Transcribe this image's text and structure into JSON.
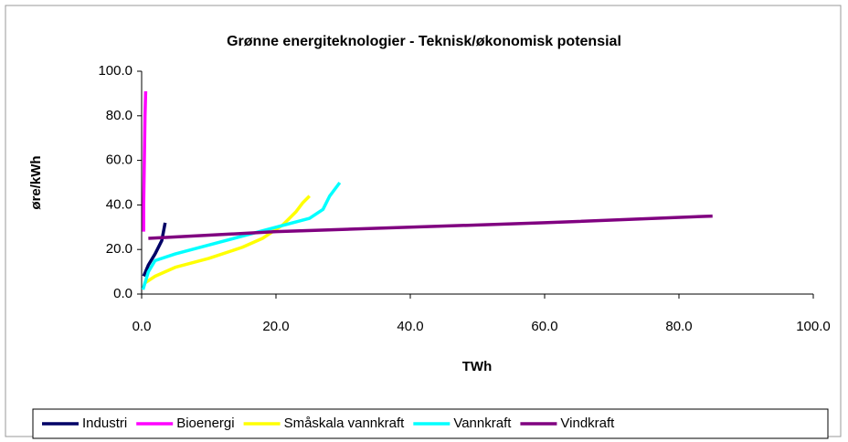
{
  "chart_data": {
    "type": "line",
    "title": "Grønne energiteknologier - Teknisk/økonomisk potensial",
    "x_label": "TWh",
    "y_label": "øre/kWh",
    "xlim": [
      0,
      100
    ],
    "ylim": [
      0,
      100
    ],
    "xticks": [
      {
        "value": 0,
        "label": "0.0"
      },
      {
        "value": 20,
        "label": "20.0"
      },
      {
        "value": 40,
        "label": "40.0"
      },
      {
        "value": 60,
        "label": "60.0"
      },
      {
        "value": 80,
        "label": "80.0"
      },
      {
        "value": 100,
        "label": "100.0"
      }
    ],
    "yticks": [
      {
        "value": 0,
        "label": "0.0"
      },
      {
        "value": 20,
        "label": "20.0"
      },
      {
        "value": 40,
        "label": "40.0"
      },
      {
        "value": 60,
        "label": "60.0"
      },
      {
        "value": 80,
        "label": "80.0"
      },
      {
        "value": 100,
        "label": "100.0"
      }
    ],
    "legend": "bottom",
    "series": [
      {
        "name": "Industri",
        "color": "#000066",
        "x": [
          0.3,
          1,
          2,
          3,
          3.5
        ],
        "values": [
          8,
          13,
          18,
          24,
          32
        ]
      },
      {
        "name": "Bioenergi",
        "color": "#ff00ff",
        "x": [
          0.3,
          0.3,
          0.4,
          0.5,
          0.6
        ],
        "values": [
          28,
          40,
          60,
          80,
          91
        ]
      },
      {
        "name": "Småskala vannkraft",
        "color": "#ffff00",
        "x": [
          0.5,
          2,
          5,
          10,
          15,
          18,
          21,
          23,
          24,
          25
        ],
        "values": [
          5,
          8,
          12,
          16,
          21,
          25,
          31,
          37,
          41,
          44
        ]
      },
      {
        "name": "Vannkraft",
        "color": "#00ffff",
        "x": [
          0.2,
          1,
          2,
          5,
          10,
          15,
          20,
          25,
          27,
          28,
          29,
          29.5
        ],
        "values": [
          2,
          10,
          15,
          18,
          22,
          26,
          30,
          34,
          38,
          44,
          48,
          50
        ]
      },
      {
        "name": "Vindkraft",
        "color": "#800080",
        "x": [
          1,
          20,
          40,
          60,
          85
        ],
        "values": [
          25,
          28,
          30,
          32,
          35
        ]
      }
    ]
  }
}
